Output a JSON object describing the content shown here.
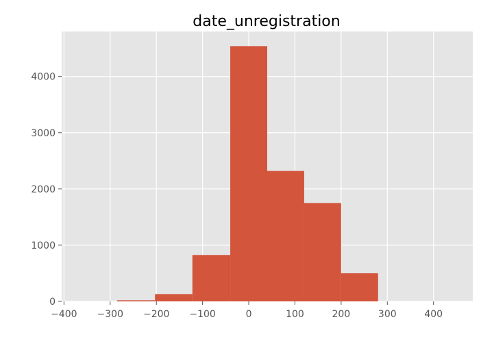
{
  "chart_data": {
    "type": "bar",
    "title": "date_unregistration",
    "xlabel": "",
    "ylabel": "",
    "xlim": [
      -405,
      485
    ],
    "ylim": [
      0,
      4800
    ],
    "xticks": [
      -400,
      -300,
      -200,
      -100,
      0,
      100,
      200,
      300,
      400
    ],
    "yticks": [
      0,
      1000,
      2000,
      3000,
      4000
    ],
    "grid": true,
    "bins": [
      {
        "x0": -285,
        "x1": -203,
        "value": 20
      },
      {
        "x0": -203,
        "x1": -122,
        "value": 130
      },
      {
        "x0": -122,
        "x1": -40,
        "value": 825
      },
      {
        "x0": -40,
        "x1": 40,
        "value": 4540
      },
      {
        "x0": 40,
        "x1": 120,
        "value": 2320
      },
      {
        "x0": 120,
        "x1": 200,
        "value": 1750
      },
      {
        "x0": 200,
        "x1": 280,
        "value": 500
      }
    ],
    "colors": {
      "bar": "#d2553c",
      "plot_background": "#e5e5e5",
      "grid": "#ffffff",
      "tick_text": "#555555",
      "title_text": "#000000"
    }
  }
}
